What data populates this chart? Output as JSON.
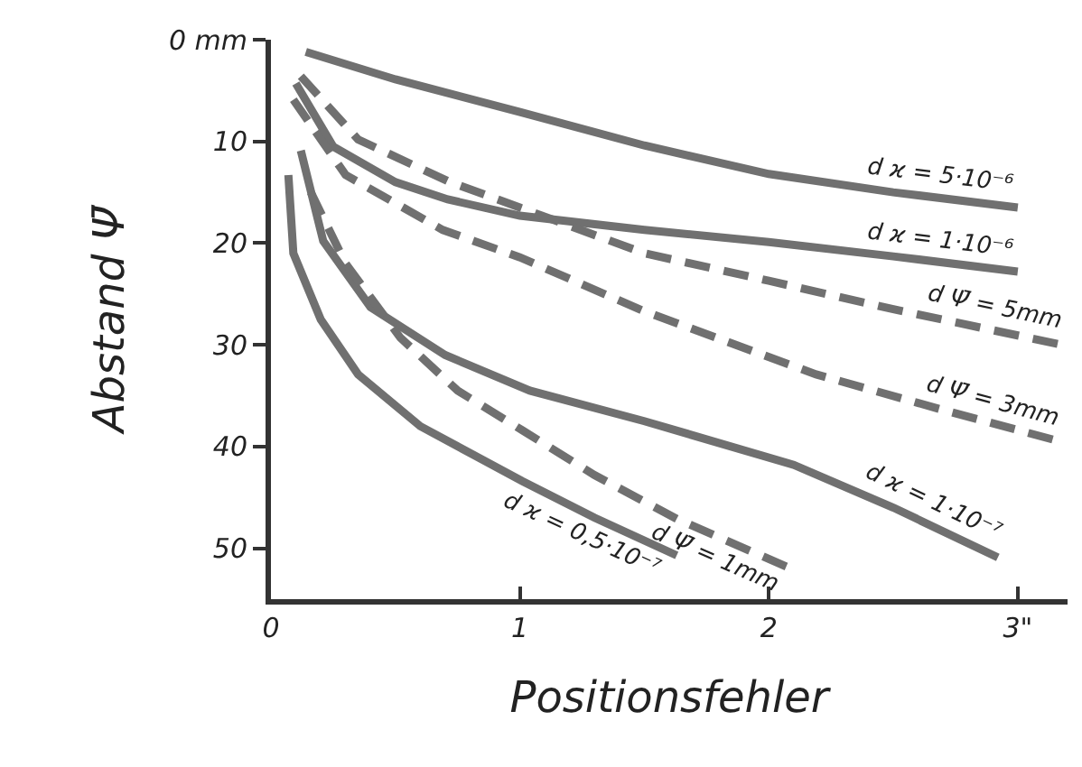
{
  "chart_data": {
    "type": "line",
    "xlabel": "Positionsfehler",
    "ylabel": "Abstand Ψ̄",
    "xlim": [
      0,
      3.2
    ],
    "xticks": [
      0,
      1,
      2,
      {
        "value": 3,
        "label": "3\""
      }
    ],
    "ylim": [
      55,
      0
    ],
    "yticks": [
      {
        "value": 0,
        "label": "0 mm"
      },
      10,
      20,
      30,
      40,
      50
    ],
    "legend": false,
    "marker": "none",
    "series": [
      {
        "name": "d ϰ = 5·10⁻⁶",
        "color": "#707070",
        "line_style": "solid",
        "x": [
          0.14,
          0.5,
          1.0,
          1.5,
          2.0,
          2.5,
          3.0
        ],
        "values": [
          1.2,
          3.9,
          7.1,
          10.4,
          13.2,
          15.0,
          16.5
        ]
      },
      {
        "name": "d ϰ = 1·10⁻⁶",
        "color": "#707070",
        "line_style": "solid",
        "x": [
          0.1,
          0.25,
          0.5,
          0.71,
          1.0,
          1.5,
          2.0,
          2.5,
          3.0
        ],
        "values": [
          4.3,
          10.5,
          14.0,
          15.7,
          17.3,
          18.7,
          19.9,
          21.3,
          22.8
        ]
      },
      {
        "name": "d Ψ̄ = 5mm",
        "color": "#707070",
        "line_style": "dashed",
        "x": [
          0.12,
          0.35,
          0.71,
          1.0,
          1.5,
          2.0,
          2.5,
          3.16
        ],
        "values": [
          3.6,
          9.8,
          13.9,
          16.5,
          21.0,
          23.7,
          26.5,
          29.9
        ]
      },
      {
        "name": "d Ψ̄ = 3mm",
        "color": "#707070",
        "line_style": "dashed",
        "x": [
          0.09,
          0.3,
          0.69,
          1.0,
          1.5,
          2.19,
          2.7,
          3.14
        ],
        "values": [
          5.9,
          13.3,
          18.7,
          21.4,
          26.7,
          32.9,
          36.4,
          39.3
        ]
      },
      {
        "name": "d ϰ = 1·10⁻⁷",
        "color": "#707070",
        "line_style": "solid",
        "x": [
          0.12,
          0.21,
          0.4,
          0.7,
          1.04,
          1.5,
          2.1,
          2.5,
          2.92
        ],
        "values": [
          10.9,
          19.8,
          26.3,
          31.0,
          34.5,
          37.5,
          41.8,
          46.0,
          50.9
        ]
      },
      {
        "name": "d Ψ̄ = 1mm",
        "color": "#707070",
        "line_style": "dashed",
        "x": [
          0.16,
          0.3,
          0.52,
          0.75,
          1.01,
          1.3,
          1.63,
          2.07
        ],
        "values": [
          15.0,
          22.0,
          29.3,
          34.5,
          38.4,
          42.8,
          47.1,
          51.8
        ]
      },
      {
        "name": "d ϰ = 0,5·10⁻⁷",
        "color": "#707070",
        "line_style": "solid",
        "x": [
          0.07,
          0.09,
          0.2,
          0.35,
          0.6,
          1.01,
          1.3,
          1.63
        ],
        "values": [
          13.3,
          21.0,
          27.5,
          32.9,
          38.0,
          43.4,
          47.0,
          50.7
        ]
      }
    ]
  }
}
